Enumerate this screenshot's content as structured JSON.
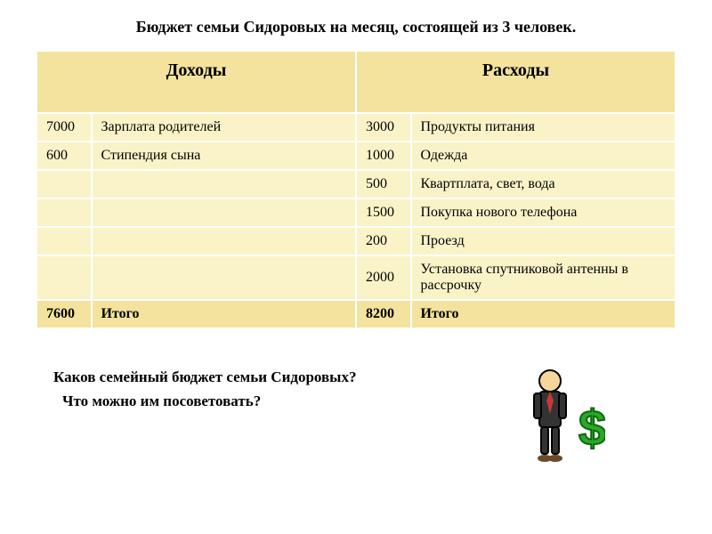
{
  "title": "Бюджет семьи Сидоровых на месяц, состоящей из 3 человек.",
  "headers": {
    "income": "Доходы",
    "expense": "Расходы"
  },
  "colors": {
    "header_bg": "#f3e39e",
    "row_bg": "#faf3c8",
    "total_bg": "#f3e39e",
    "border": "#ffffff",
    "text": "#000000",
    "dollar": "#2aa82a",
    "suit": "#333333",
    "skin": "#f5d79e",
    "tie": "#c43a3a"
  },
  "rows": [
    {
      "inc_amt": "7000",
      "inc_desc": "Зарплата родителей",
      "exp_amt": "3000",
      "exp_desc": "Продукты питания"
    },
    {
      "inc_amt": "600",
      "inc_desc": "Стипендия  сына",
      "exp_amt": "1000",
      "exp_desc": "Одежда"
    },
    {
      "inc_amt": "",
      "inc_desc": "",
      "exp_amt": "500",
      "exp_desc": "Квартплата, свет, вода"
    },
    {
      "inc_amt": "",
      "inc_desc": "",
      "exp_amt": "1500",
      "exp_desc": "Покупка нового телефона"
    },
    {
      "inc_amt": "",
      "inc_desc": "",
      "exp_amt": "200",
      "exp_desc": "Проезд"
    },
    {
      "inc_amt": "",
      "inc_desc": "",
      "exp_amt": "2000",
      "exp_desc": "Установка спутниковой антенны в рассрочку"
    }
  ],
  "total": {
    "inc_amt": "7600",
    "inc_desc": "Итого",
    "exp_amt": "8200",
    "exp_desc": "Итого"
  },
  "questions": {
    "q1": "Каков семейный бюджет семьи  Сидоровых?",
    "q2": "Что можно им посоветовать?"
  },
  "fonts": {
    "title_size": 18,
    "header_size": 20,
    "cell_size": 16,
    "question_size": 17
  }
}
